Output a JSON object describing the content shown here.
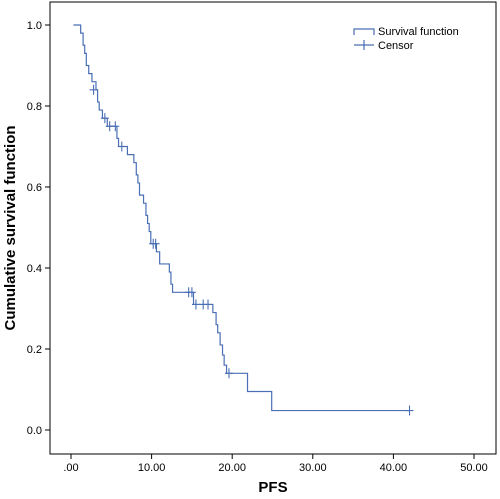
{
  "chart_data": {
    "type": "line",
    "xlabel": "PFS",
    "ylabel": "Cumulative survival function",
    "xlim": [
      0,
      50
    ],
    "ylim": [
      0,
      1
    ],
    "x_ticks": [
      {
        "value": 0,
        "label": ".00"
      },
      {
        "value": 10,
        "label": "10.00"
      },
      {
        "value": 20,
        "label": "20.00"
      },
      {
        "value": 30,
        "label": "30.00"
      },
      {
        "value": 40,
        "label": "40.00"
      },
      {
        "value": 50,
        "label": "50.00"
      }
    ],
    "y_ticks": [
      {
        "value": 0,
        "label": "0.0"
      },
      {
        "value": 0.2,
        "label": "0.2"
      },
      {
        "value": 0.4,
        "label": "0.4"
      },
      {
        "value": 0.6,
        "label": "0.6"
      },
      {
        "value": 0.8,
        "label": "0.8"
      },
      {
        "value": 1.0,
        "label": "1.0"
      }
    ],
    "grid": false,
    "legend_position": "top-right",
    "line_color": "#4a6fb5",
    "series": [
      {
        "name": "Survival function",
        "kind": "step",
        "points": [
          {
            "x": 0.3,
            "y": 1.0
          },
          {
            "x": 1.2,
            "y": 0.98
          },
          {
            "x": 1.5,
            "y": 0.95
          },
          {
            "x": 1.7,
            "y": 0.93
          },
          {
            "x": 1.9,
            "y": 0.9
          },
          {
            "x": 2.2,
            "y": 0.88
          },
          {
            "x": 2.6,
            "y": 0.86
          },
          {
            "x": 3.1,
            "y": 0.84
          },
          {
            "x": 3.3,
            "y": 0.81
          },
          {
            "x": 3.5,
            "y": 0.79
          },
          {
            "x": 3.9,
            "y": 0.77
          },
          {
            "x": 4.5,
            "y": 0.75
          },
          {
            "x": 5.7,
            "y": 0.72
          },
          {
            "x": 5.9,
            "y": 0.7
          },
          {
            "x": 7.0,
            "y": 0.68
          },
          {
            "x": 7.8,
            "y": 0.66
          },
          {
            "x": 8.1,
            "y": 0.63
          },
          {
            "x": 8.3,
            "y": 0.61
          },
          {
            "x": 8.5,
            "y": 0.58
          },
          {
            "x": 9.0,
            "y": 0.56
          },
          {
            "x": 9.3,
            "y": 0.53
          },
          {
            "x": 9.5,
            "y": 0.51
          },
          {
            "x": 9.7,
            "y": 0.49
          },
          {
            "x": 9.9,
            "y": 0.46
          },
          {
            "x": 10.6,
            "y": 0.44
          },
          {
            "x": 11.0,
            "y": 0.41
          },
          {
            "x": 12.2,
            "y": 0.39
          },
          {
            "x": 12.4,
            "y": 0.36
          },
          {
            "x": 12.6,
            "y": 0.34
          },
          {
            "x": 15.2,
            "y": 0.31
          },
          {
            "x": 17.6,
            "y": 0.29
          },
          {
            "x": 18.0,
            "y": 0.26
          },
          {
            "x": 18.2,
            "y": 0.24
          },
          {
            "x": 18.5,
            "y": 0.21
          },
          {
            "x": 18.8,
            "y": 0.185
          },
          {
            "x": 19.0,
            "y": 0.16
          },
          {
            "x": 19.3,
            "y": 0.14
          },
          {
            "x": 21.9,
            "y": 0.095
          },
          {
            "x": 24.9,
            "y": 0.048
          },
          {
            "x": 42.0,
            "y": 0.048
          }
        ]
      },
      {
        "name": "Censor",
        "kind": "marker",
        "points": [
          {
            "x": 2.8,
            "y": 0.84
          },
          {
            "x": 4.2,
            "y": 0.77
          },
          {
            "x": 4.8,
            "y": 0.75
          },
          {
            "x": 5.5,
            "y": 0.75
          },
          {
            "x": 6.3,
            "y": 0.7
          },
          {
            "x": 10.2,
            "y": 0.46
          },
          {
            "x": 10.5,
            "y": 0.46
          },
          {
            "x": 14.6,
            "y": 0.34
          },
          {
            "x": 15.0,
            "y": 0.34
          },
          {
            "x": 15.5,
            "y": 0.31
          },
          {
            "x": 16.4,
            "y": 0.31
          },
          {
            "x": 17.0,
            "y": 0.31
          },
          {
            "x": 19.6,
            "y": 0.14
          },
          {
            "x": 42.0,
            "y": 0.048
          }
        ]
      }
    ]
  }
}
